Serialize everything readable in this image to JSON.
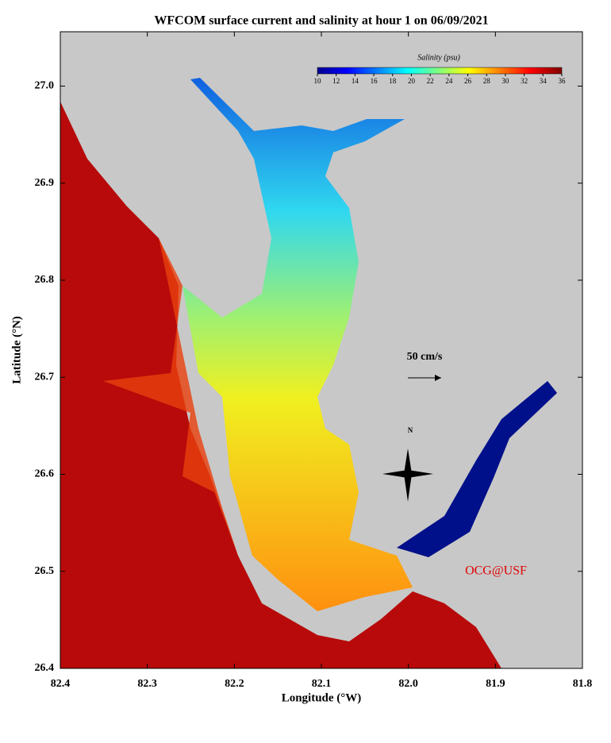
{
  "chart_data": {
    "type": "map",
    "title": "WFCOM surface current and salinity at hour 1 on 06/09/2021",
    "x_label": "Longitude (°W)",
    "y_label": "Latitude (°N)",
    "xlim": [
      82.4,
      81.8
    ],
    "xticks": [
      82.4,
      82.3,
      82.2,
      82.1,
      {
        "value": 82,
        "label": "82.0"
      },
      81.9,
      81.8
    ],
    "ylim": [
      26.4,
      27.056
    ],
    "yticks": [
      26.4,
      {
        "value": 26.5,
        "label": "26.5"
      },
      26.6,
      26.7,
      26.8,
      26.9,
      {
        "value": 27,
        "label": "27.0"
      }
    ],
    "colorbar": {
      "title": "Salinity (psu)",
      "lim": [
        10,
        36
      ],
      "ticks": [
        10,
        12,
        14,
        16,
        18,
        20,
        22,
        24,
        26,
        28,
        30,
        32,
        34,
        36
      ]
    },
    "scale_label": "50 cm/s",
    "north_label": "N",
    "credit": "OCG@USF"
  }
}
